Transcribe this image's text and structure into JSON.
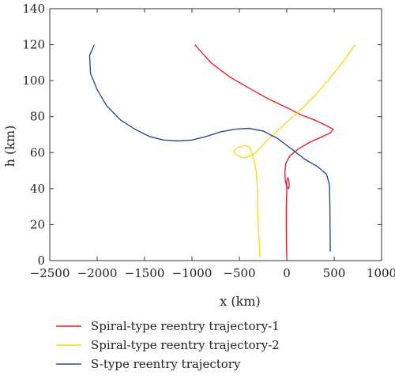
{
  "chart_data": {
    "type": "line",
    "xlabel": "x (km)",
    "ylabel": "h (km)",
    "xlim": [
      -2500,
      1000
    ],
    "ylim": [
      0,
      140
    ],
    "xticks": [
      -2500,
      -2000,
      -1500,
      -1000,
      -500,
      0,
      500,
      1000
    ],
    "yticks": [
      0,
      20,
      40,
      60,
      80,
      100,
      120,
      140
    ],
    "grid": false,
    "legend_position": "bottom",
    "series": [
      {
        "name": "Spiral-type reentry trajectory-1",
        "color": "#e8202a",
        "points": [
          [
            -970,
            120
          ],
          [
            -800,
            110
          ],
          [
            -600,
            102
          ],
          [
            -400,
            96
          ],
          [
            -200,
            90
          ],
          [
            0,
            85
          ],
          [
            150,
            81
          ],
          [
            300,
            78
          ],
          [
            420,
            75
          ],
          [
            490,
            73
          ],
          [
            460,
            71
          ],
          [
            380,
            69
          ],
          [
            250,
            66
          ],
          [
            120,
            62
          ],
          [
            30,
            58
          ],
          [
            -10,
            54
          ],
          [
            -20,
            49
          ],
          [
            -15,
            44
          ],
          [
            0,
            41
          ],
          [
            20,
            40
          ],
          [
            25,
            42
          ],
          [
            20,
            45
          ],
          [
            10,
            46
          ],
          [
            0,
            44
          ],
          [
            0,
            39
          ],
          [
            -5,
            30
          ],
          [
            -5,
            20
          ],
          [
            -3,
            10
          ],
          [
            0,
            2
          ]
        ]
      },
      {
        "name": "Spiral-type reentry trajectory-2",
        "color": "#f0dc1e",
        "points": [
          [
            720,
            120
          ],
          [
            600,
            111
          ],
          [
            450,
            101
          ],
          [
            300,
            92
          ],
          [
            150,
            84
          ],
          [
            0,
            77
          ],
          [
            -100,
            72
          ],
          [
            -220,
            66
          ],
          [
            -330,
            60
          ],
          [
            -390,
            58
          ],
          [
            -460,
            57
          ],
          [
            -540,
            59
          ],
          [
            -560,
            61
          ],
          [
            -510,
            63
          ],
          [
            -440,
            64
          ],
          [
            -390,
            63
          ],
          [
            -370,
            60
          ],
          [
            -340,
            55
          ],
          [
            -320,
            48
          ],
          [
            -310,
            40
          ],
          [
            -310,
            30
          ],
          [
            -300,
            20
          ],
          [
            -290,
            10
          ],
          [
            -285,
            2
          ]
        ]
      },
      {
        "name": "S-type reentry trajectory",
        "color": "#2e4a94",
        "points": [
          [
            -2030,
            120
          ],
          [
            -2080,
            114
          ],
          [
            -2070,
            104
          ],
          [
            -2000,
            95
          ],
          [
            -1900,
            86
          ],
          [
            -1750,
            78
          ],
          [
            -1600,
            73
          ],
          [
            -1450,
            69
          ],
          [
            -1300,
            67
          ],
          [
            -1150,
            66.5
          ],
          [
            -1000,
            67
          ],
          [
            -850,
            69
          ],
          [
            -700,
            71.5
          ],
          [
            -550,
            73
          ],
          [
            -400,
            73.5
          ],
          [
            -250,
            72
          ],
          [
            -100,
            68
          ],
          [
            50,
            62
          ],
          [
            200,
            56
          ],
          [
            330,
            52
          ],
          [
            420,
            48
          ],
          [
            450,
            42
          ],
          [
            455,
            30
          ],
          [
            457,
            18
          ],
          [
            460,
            5
          ]
        ]
      }
    ]
  }
}
